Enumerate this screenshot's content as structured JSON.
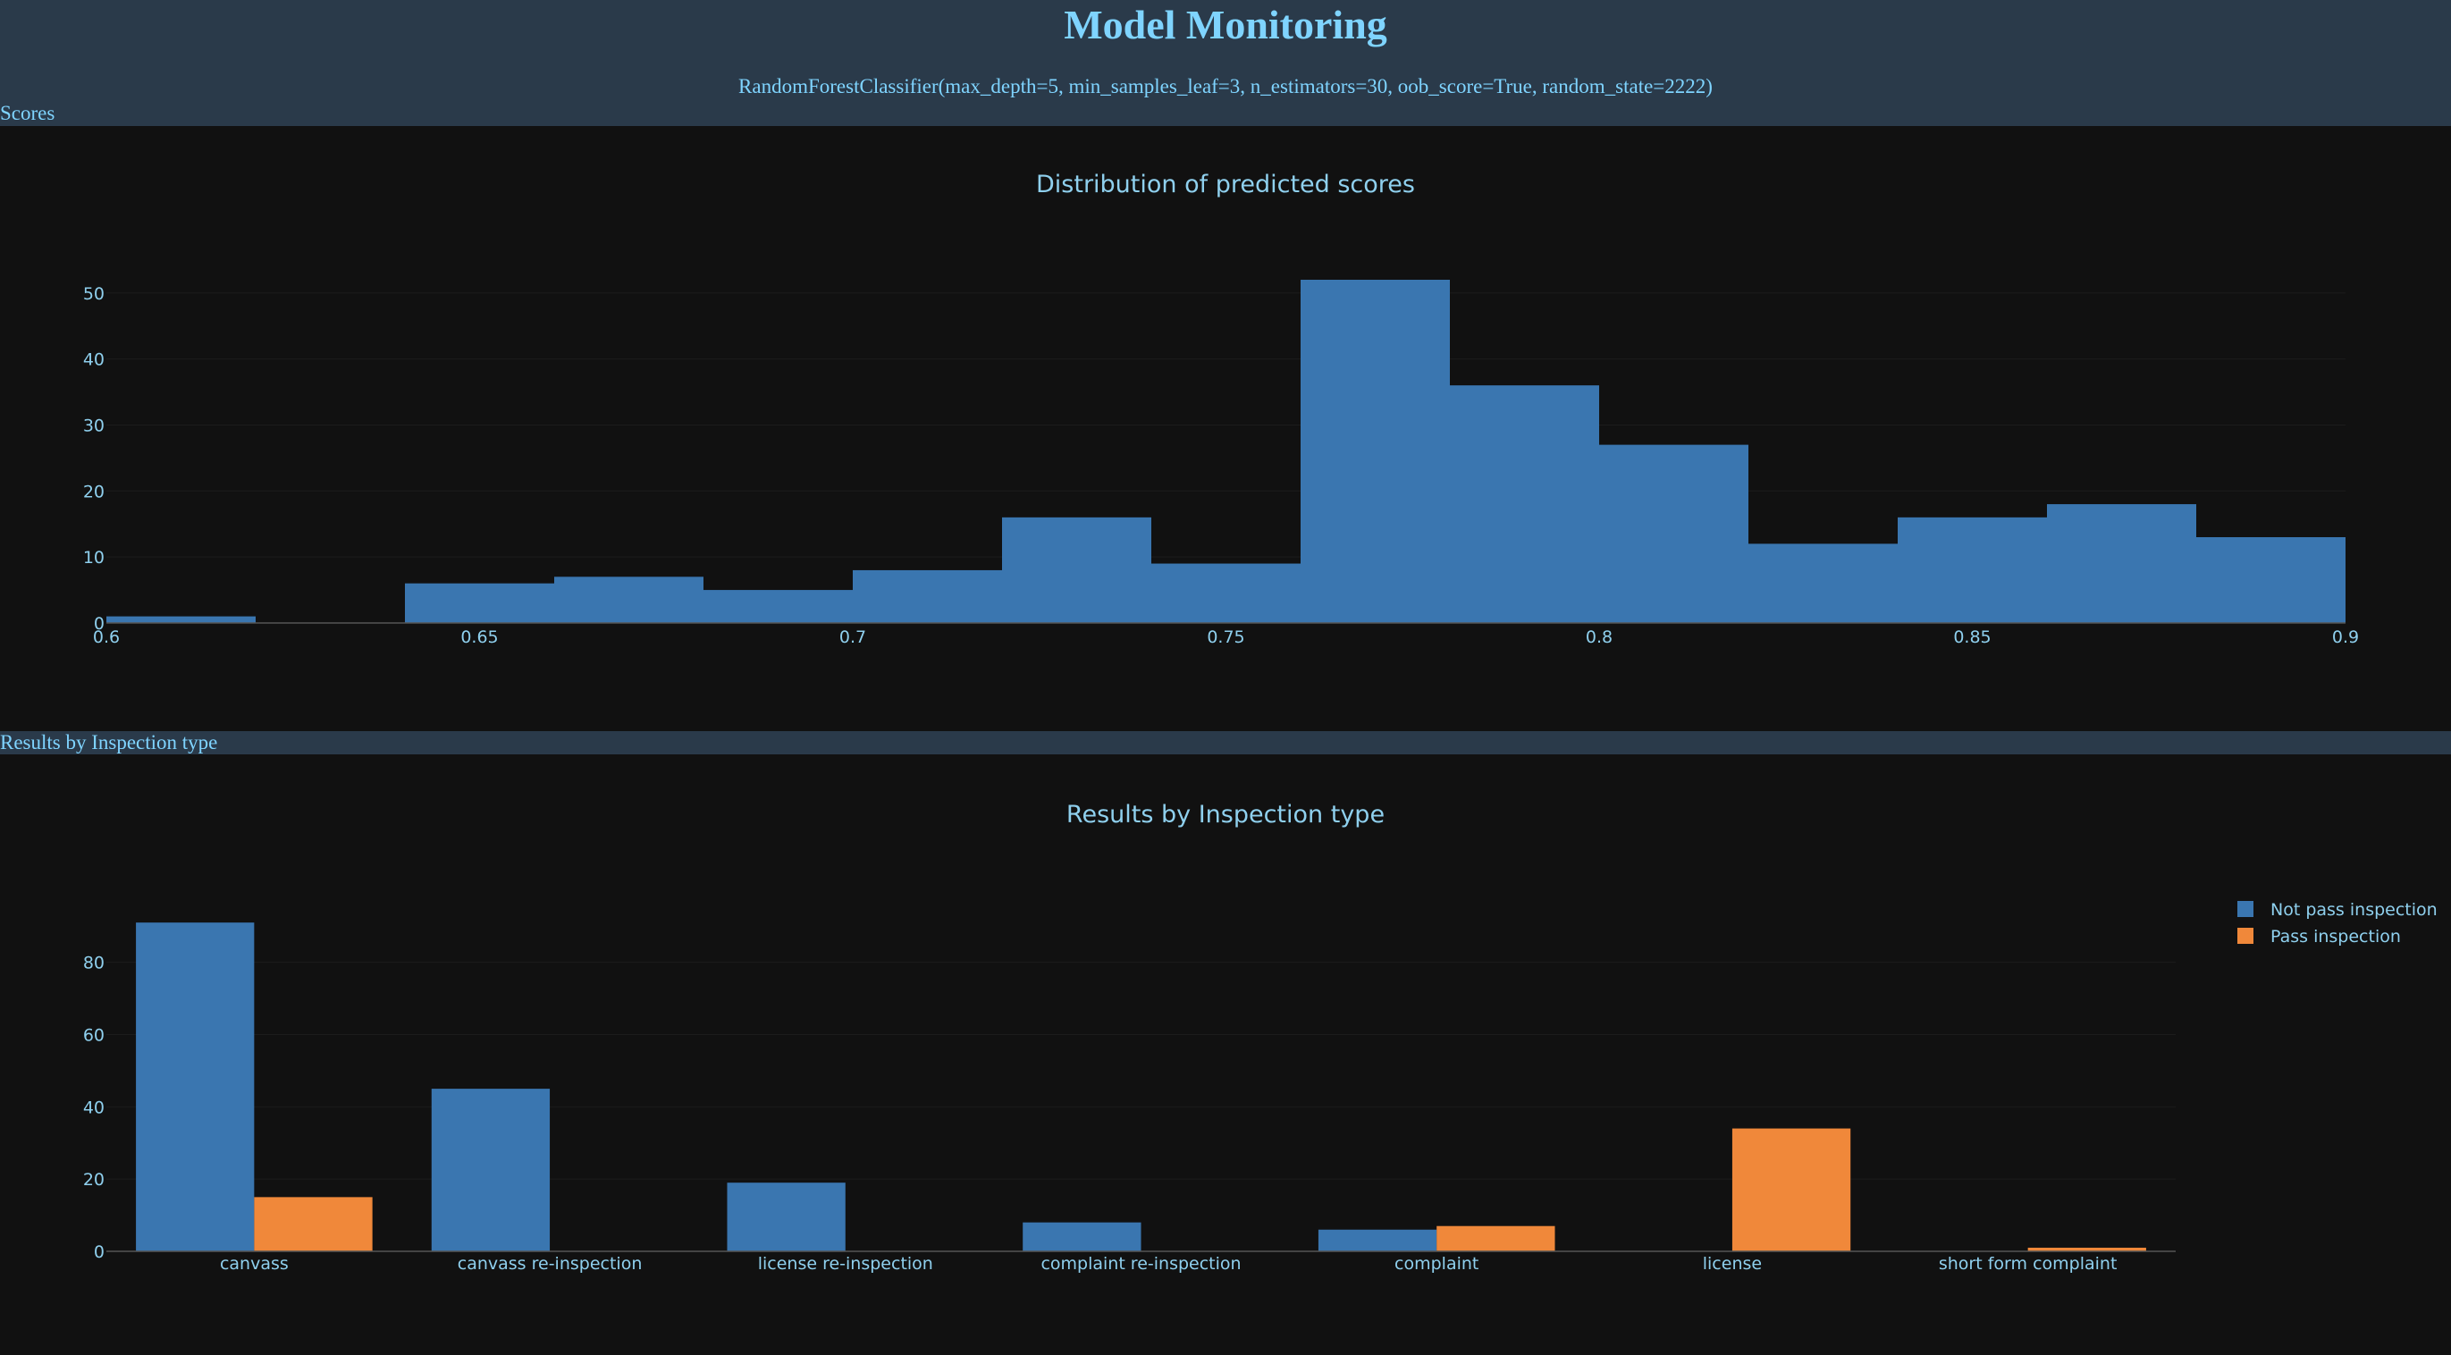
{
  "header": {
    "title": "Model Monitoring",
    "model": "RandomForestClassifier(max_depth=5, min_samples_leaf=3, n_estimators=30, oob_score=True, random_state=2222)"
  },
  "sections": {
    "scores_label": "Scores",
    "results_label": "Results by Inspection type"
  },
  "colors": {
    "blue": "#3a76b0",
    "orange": "#f0883a",
    "background": "#111111",
    "header": "#2a3a4a",
    "text": "#8fd0ee"
  },
  "chart_data": [
    {
      "type": "bar",
      "title": "Distribution of predicted scores",
      "bin_edges": [
        0.6,
        0.62,
        0.64,
        0.66,
        0.68,
        0.7,
        0.72,
        0.74,
        0.76,
        0.78,
        0.8,
        0.82,
        0.84,
        0.86,
        0.88,
        0.9
      ],
      "values": [
        1,
        0,
        6,
        7,
        5,
        8,
        16,
        9,
        52,
        36,
        27,
        12,
        16,
        18,
        13
      ],
      "xlim": [
        0.6,
        0.9
      ],
      "ylim": [
        0,
        52
      ],
      "x_ticks": [
        "0.6",
        "0.65",
        "0.7",
        "0.75",
        "0.8",
        "0.85",
        "0.9"
      ],
      "y_ticks": [
        "0",
        "10",
        "20",
        "30",
        "40",
        "50"
      ],
      "grid": true
    },
    {
      "type": "bar",
      "title": "Results by Inspection type",
      "categories": [
        "canvass",
        "canvass re-inspection",
        "license re-inspection",
        "complaint re-inspection",
        "complaint",
        "license",
        "short form complaint"
      ],
      "series": [
        {
          "name": "Not pass inspection",
          "values": [
            91,
            45,
            19,
            8,
            6,
            0,
            0
          ]
        },
        {
          "name": "Pass inspection",
          "values": [
            15,
            0,
            0,
            0,
            7,
            34,
            1
          ]
        }
      ],
      "ylim": [
        0,
        95
      ],
      "y_ticks": [
        "0",
        "20",
        "40",
        "60",
        "80"
      ],
      "legend": "top-right",
      "grid": true
    }
  ]
}
